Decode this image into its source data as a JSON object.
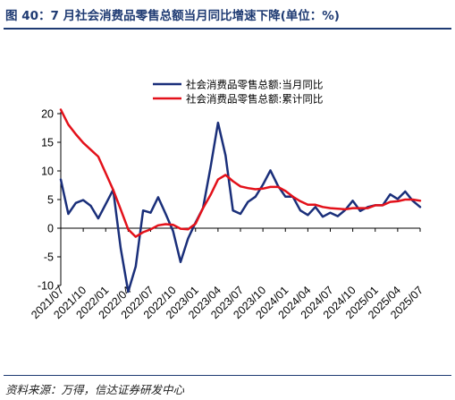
{
  "figure_title": "图 40：7 月社会消费品零售总额当月同比增速下降(单位：%)",
  "source_note": "资料来源：万得，信达证券研发中心",
  "colors": {
    "monthly": "#1a2f7a",
    "cumulative": "#e3111a",
    "rule": "#1f3b73"
  },
  "chart_data": {
    "type": "line",
    "ylim": [
      -10,
      20
    ],
    "yticks": [
      -10,
      -5,
      0,
      5,
      10,
      15,
      20
    ],
    "grid": false,
    "legend_position": "top-right",
    "xtick_labels": [
      "2021/07",
      "2021/10",
      "2022/01",
      "2022/04",
      "2022/07",
      "2022/10",
      "2023/01",
      "2023/04",
      "2023/07",
      "2023/10",
      "2024/01",
      "2024/04",
      "2024/07",
      "2024/10",
      "2025/01",
      "2025/04",
      "2025/07"
    ],
    "x": [
      "2021/07",
      "2021/08",
      "2021/09",
      "2021/10",
      "2021/11",
      "2021/12",
      "2022/01",
      "2022/02",
      "2022/03",
      "2022/04",
      "2022/05",
      "2022/06",
      "2022/07",
      "2022/08",
      "2022/09",
      "2022/10",
      "2022/11",
      "2022/12",
      "2023/01",
      "2023/02",
      "2023/03",
      "2023/04",
      "2023/05",
      "2023/06",
      "2023/07",
      "2023/08",
      "2023/09",
      "2023/10",
      "2023/11",
      "2023/12",
      "2024/01",
      "2024/02",
      "2024/03",
      "2024/04",
      "2024/05",
      "2024/06",
      "2024/07",
      "2024/08",
      "2024/09",
      "2024/10",
      "2024/11",
      "2024/12",
      "2025/01",
      "2025/02",
      "2025/03",
      "2025/04",
      "2025/05",
      "2025/06",
      "2025/07"
    ],
    "series": [
      {
        "name": "社会消费品零售总额:当月同比",
        "values": [
          8.5,
          2.5,
          4.4,
          4.9,
          3.9,
          1.7,
          4.2,
          6.7,
          -3.5,
          -11.1,
          -6.7,
          3.1,
          2.7,
          5.4,
          2.5,
          -0.5,
          -5.9,
          -1.8,
          1.0,
          3.5,
          10.6,
          18.4,
          12.7,
          3.1,
          2.5,
          4.6,
          5.5,
          7.6,
          10.1,
          7.4,
          5.5,
          5.5,
          3.1,
          2.3,
          3.7,
          2.0,
          2.7,
          2.1,
          3.2,
          4.8,
          3.0,
          3.7,
          4.0,
          4.0,
          5.9,
          5.1,
          6.4,
          4.8,
          3.7
        ]
      },
      {
        "name": "社会消费品零售总额:累计同比",
        "values": [
          20.7,
          18.1,
          16.4,
          14.9,
          13.7,
          12.5,
          9.6,
          6.7,
          3.3,
          -0.2,
          -1.5,
          -0.7,
          -0.2,
          0.5,
          0.7,
          0.6,
          -0.1,
          -0.2,
          0.8,
          3.5,
          5.8,
          8.5,
          9.3,
          8.2,
          7.3,
          7.0,
          6.8,
          6.9,
          7.2,
          7.2,
          6.5,
          5.5,
          4.7,
          4.1,
          4.1,
          3.7,
          3.5,
          3.4,
          3.3,
          3.5,
          3.5,
          3.5,
          4.0,
          4.0,
          4.6,
          4.7,
          5.0,
          5.0,
          4.8
        ]
      }
    ]
  }
}
